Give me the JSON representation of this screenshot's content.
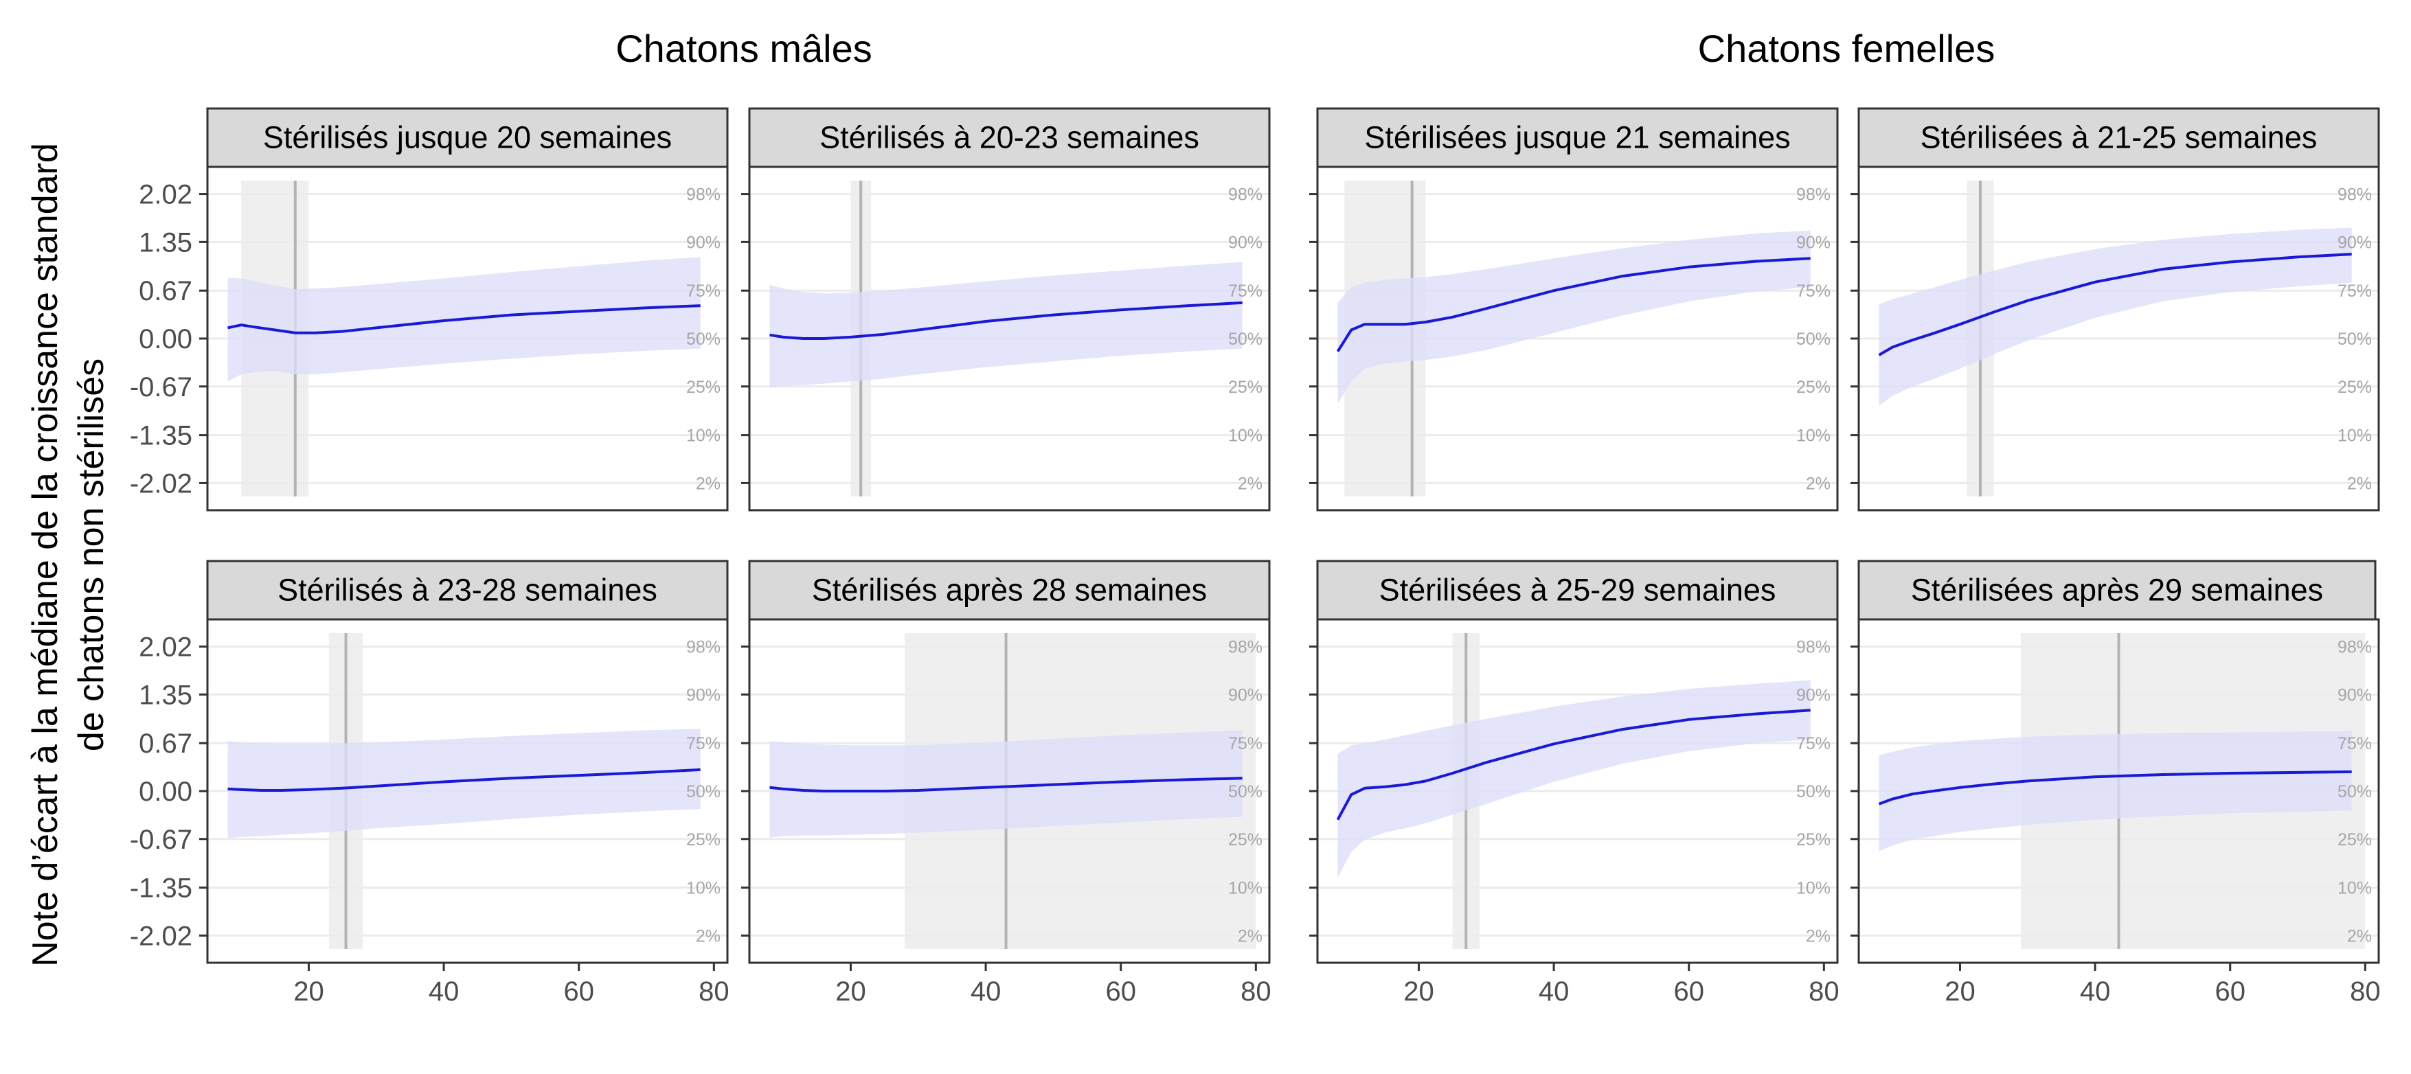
{
  "group_titles": [
    "Chatons mâles",
    "Chatons femelles"
  ],
  "ylabel_lines": [
    "Note d’écart à la médiane de la croissance standard",
    "de chatons non stérilisés"
  ],
  "chart_data": {
    "type": "line",
    "ylabel": "Note d’écart à la médiane de la croissance standard de chatons non stérilisés",
    "yticks": [
      2.02,
      1.35,
      0.67,
      0.0,
      -0.67,
      -1.35,
      -2.02
    ],
    "ytick_labels": [
      "2.02",
      "1.35",
      "0.67",
      "0.00",
      "-0.67",
      "-1.35",
      "-2.02"
    ],
    "percentiles": [
      {
        "y": 2.02,
        "label": "98%"
      },
      {
        "y": 1.35,
        "label": "90%"
      },
      {
        "y": 0.67,
        "label": "75%"
      },
      {
        "y": 0.0,
        "label": "50%"
      },
      {
        "y": -0.67,
        "label": "25%"
      },
      {
        "y": -1.35,
        "label": "10%"
      },
      {
        "y": -2.02,
        "label": "2%"
      }
    ],
    "xticks": [
      20,
      40,
      60,
      80
    ],
    "xlim": [
      5,
      82
    ],
    "ylim": [
      -2.4,
      2.4
    ],
    "colors": {
      "line": "#1a1ad6",
      "band": "#dcdcf9",
      "window": "#ececec",
      "vline": "#b3b3b3",
      "grid": "#ebebeb",
      "strip": "#d9d9d9"
    },
    "panels": [
      {
        "title": "Stérilisés jusque 20 semaines",
        "group": "Chatons mâles",
        "window": [
          10,
          20
        ],
        "vline": 18,
        "x": [
          8,
          10,
          12,
          15,
          18,
          21,
          25,
          30,
          40,
          50,
          60,
          70,
          78
        ],
        "median": [
          0.15,
          0.19,
          0.16,
          0.12,
          0.08,
          0.08,
          0.1,
          0.15,
          0.25,
          0.33,
          0.38,
          0.43,
          0.46
        ],
        "upper": [
          0.85,
          0.84,
          0.8,
          0.74,
          0.69,
          0.7,
          0.72,
          0.76,
          0.84,
          0.93,
          1.01,
          1.09,
          1.14
        ],
        "lower": [
          -0.6,
          -0.5,
          -0.47,
          -0.45,
          -0.5,
          -0.5,
          -0.47,
          -0.43,
          -0.35,
          -0.28,
          -0.22,
          -0.17,
          -0.14
        ]
      },
      {
        "title": "Stérilisés à 20-23 semaines",
        "group": "Chatons mâles",
        "window": [
          20,
          23
        ],
        "vline": 21.5,
        "x": [
          8,
          10,
          13,
          16,
          20,
          25,
          30,
          40,
          50,
          60,
          70,
          78
        ],
        "median": [
          0.05,
          0.02,
          0.0,
          0.0,
          0.02,
          0.06,
          0.12,
          0.24,
          0.33,
          0.4,
          0.46,
          0.5
        ],
        "upper": [
          0.75,
          0.7,
          0.65,
          0.63,
          0.64,
          0.67,
          0.71,
          0.8,
          0.88,
          0.95,
          1.02,
          1.07
        ],
        "lower": [
          -0.68,
          -0.66,
          -0.65,
          -0.63,
          -0.6,
          -0.56,
          -0.5,
          -0.4,
          -0.32,
          -0.24,
          -0.18,
          -0.14
        ]
      },
      {
        "title": "Stérilisées jusque 21 semaines",
        "group": "Chatons femelles",
        "window": [
          9,
          21
        ],
        "vline": 19,
        "x": [
          8,
          10,
          12,
          15,
          18,
          21,
          25,
          30,
          40,
          50,
          60,
          70,
          78
        ],
        "median": [
          -0.18,
          0.12,
          0.2,
          0.2,
          0.2,
          0.23,
          0.3,
          0.42,
          0.67,
          0.87,
          1.0,
          1.08,
          1.12
        ],
        "upper": [
          0.5,
          0.72,
          0.78,
          0.82,
          0.84,
          0.86,
          0.9,
          0.97,
          1.12,
          1.26,
          1.38,
          1.47,
          1.51
        ],
        "lower": [
          -0.91,
          -0.6,
          -0.42,
          -0.35,
          -0.32,
          -0.3,
          -0.25,
          -0.16,
          0.08,
          0.32,
          0.52,
          0.66,
          0.72
        ]
      },
      {
        "title": "Stérilisées à 21-25 semaines",
        "group": "Chatons femelles",
        "window": [
          21,
          25
        ],
        "vline": 23,
        "x": [
          8,
          10,
          13,
          16,
          20,
          25,
          30,
          40,
          50,
          60,
          70,
          78
        ],
        "median": [
          -0.23,
          -0.12,
          -0.02,
          0.07,
          0.2,
          0.37,
          0.53,
          0.79,
          0.97,
          1.07,
          1.14,
          1.18
        ],
        "upper": [
          0.48,
          0.55,
          0.63,
          0.71,
          0.82,
          0.95,
          1.07,
          1.25,
          1.38,
          1.46,
          1.52,
          1.55
        ],
        "lower": [
          -0.94,
          -0.8,
          -0.67,
          -0.57,
          -0.42,
          -0.22,
          -0.03,
          0.29,
          0.52,
          0.65,
          0.73,
          0.78
        ]
      },
      {
        "title": "Stérilisés à 23-28 semaines",
        "group": "Chatons mâles",
        "window": [
          23,
          28
        ],
        "vline": 25.5,
        "x": [
          8,
          10,
          13,
          16,
          20,
          25,
          30,
          40,
          50,
          60,
          70,
          78
        ],
        "median": [
          0.03,
          0.02,
          0.01,
          0.01,
          0.02,
          0.04,
          0.07,
          0.13,
          0.18,
          0.22,
          0.26,
          0.3
        ],
        "upper": [
          0.7,
          0.68,
          0.67,
          0.66,
          0.66,
          0.67,
          0.68,
          0.72,
          0.77,
          0.81,
          0.85,
          0.87
        ],
        "lower": [
          -0.66,
          -0.64,
          -0.63,
          -0.61,
          -0.59,
          -0.56,
          -0.52,
          -0.46,
          -0.39,
          -0.33,
          -0.28,
          -0.25
        ]
      },
      {
        "title": "Stérilisés après 28 semaines",
        "group": "Chatons mâles",
        "window": [
          28,
          80
        ],
        "vline": 43,
        "x": [
          8,
          10,
          13,
          16,
          20,
          25,
          30,
          40,
          50,
          60,
          70,
          78
        ],
        "median": [
          0.05,
          0.03,
          0.01,
          0.0,
          0.0,
          0.0,
          0.01,
          0.05,
          0.09,
          0.13,
          0.16,
          0.18
        ],
        "upper": [
          0.7,
          0.68,
          0.66,
          0.65,
          0.64,
          0.64,
          0.64,
          0.68,
          0.73,
          0.78,
          0.82,
          0.85
        ],
        "lower": [
          -0.65,
          -0.63,
          -0.62,
          -0.62,
          -0.61,
          -0.6,
          -0.58,
          -0.54,
          -0.49,
          -0.44,
          -0.39,
          -0.36
        ]
      },
      {
        "title": "Stérilisées à 25-29 semaines",
        "group": "Chatons femelles",
        "window": [
          25,
          29
        ],
        "vline": 27,
        "x": [
          8,
          10,
          12,
          15,
          18,
          21,
          25,
          30,
          40,
          50,
          60,
          70,
          78
        ],
        "median": [
          -0.4,
          -0.05,
          0.04,
          0.06,
          0.09,
          0.14,
          0.25,
          0.4,
          0.66,
          0.86,
          1.0,
          1.08,
          1.13
        ],
        "upper": [
          0.52,
          0.64,
          0.67,
          0.72,
          0.78,
          0.84,
          0.92,
          1.01,
          1.18,
          1.32,
          1.43,
          1.5,
          1.55
        ],
        "lower": [
          -1.21,
          -0.85,
          -0.68,
          -0.58,
          -0.52,
          -0.45,
          -0.33,
          -0.18,
          0.13,
          0.38,
          0.56,
          0.67,
          0.72
        ]
      },
      {
        "title": "Stérilisées après 29 semaines",
        "group": "Chatons femelles",
        "window": [
          29,
          80
        ],
        "vline": 43.5,
        "x": [
          8,
          10,
          13,
          16,
          20,
          25,
          30,
          40,
          50,
          60,
          70,
          78
        ],
        "median": [
          -0.18,
          -0.11,
          -0.04,
          0.0,
          0.05,
          0.1,
          0.14,
          0.2,
          0.23,
          0.25,
          0.26,
          0.27
        ],
        "upper": [
          0.5,
          0.55,
          0.61,
          0.65,
          0.7,
          0.73,
          0.76,
          0.79,
          0.81,
          0.82,
          0.83,
          0.84
        ],
        "lower": [
          -0.84,
          -0.76,
          -0.68,
          -0.63,
          -0.57,
          -0.52,
          -0.47,
          -0.4,
          -0.35,
          -0.31,
          -0.29,
          -0.27
        ]
      }
    ]
  }
}
